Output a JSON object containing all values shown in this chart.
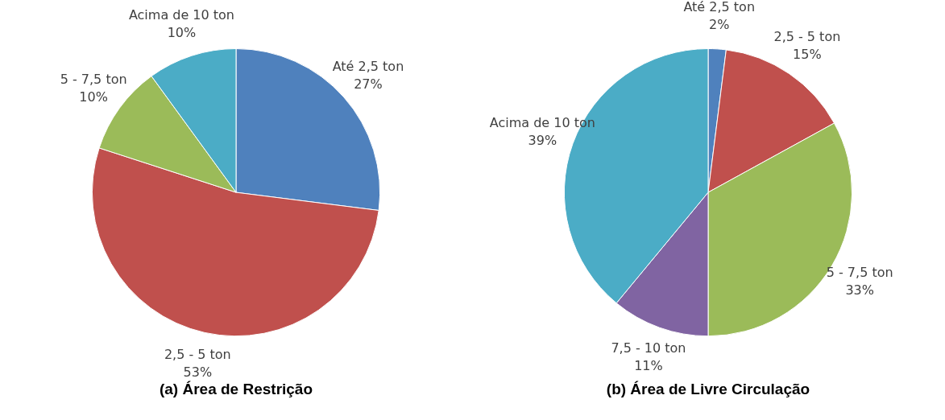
{
  "chart_data": [
    {
      "type": "pie",
      "title": "(a) Área de Restrição",
      "categories": [
        "Até 2,5 ton",
        "2,5 - 5 ton",
        "5 - 7,5 ton",
        "Acima de 10 ton"
      ],
      "values": [
        27,
        53,
        10,
        10
      ],
      "value_labels": [
        "27%",
        "53%",
        "10%",
        "10%"
      ],
      "colors": [
        "#4f81bd",
        "#c0504d",
        "#9bbb59",
        "#4bacc6"
      ],
      "legend": false
    },
    {
      "type": "pie",
      "title": "(b) Área de Livre Circulação",
      "categories": [
        "Até 2,5 ton",
        "2,5 - 5 ton",
        "5 - 7,5 ton",
        "7,5 - 10 ton",
        "Acima de 10 ton"
      ],
      "values": [
        2,
        15,
        33,
        11,
        39
      ],
      "value_labels": [
        "2%",
        "15%",
        "33%",
        "11%",
        "39%"
      ],
      "colors": [
        "#4f81bd",
        "#c0504d",
        "#9bbb59",
        "#8064a2",
        "#4bacc6"
      ],
      "legend": false
    }
  ]
}
